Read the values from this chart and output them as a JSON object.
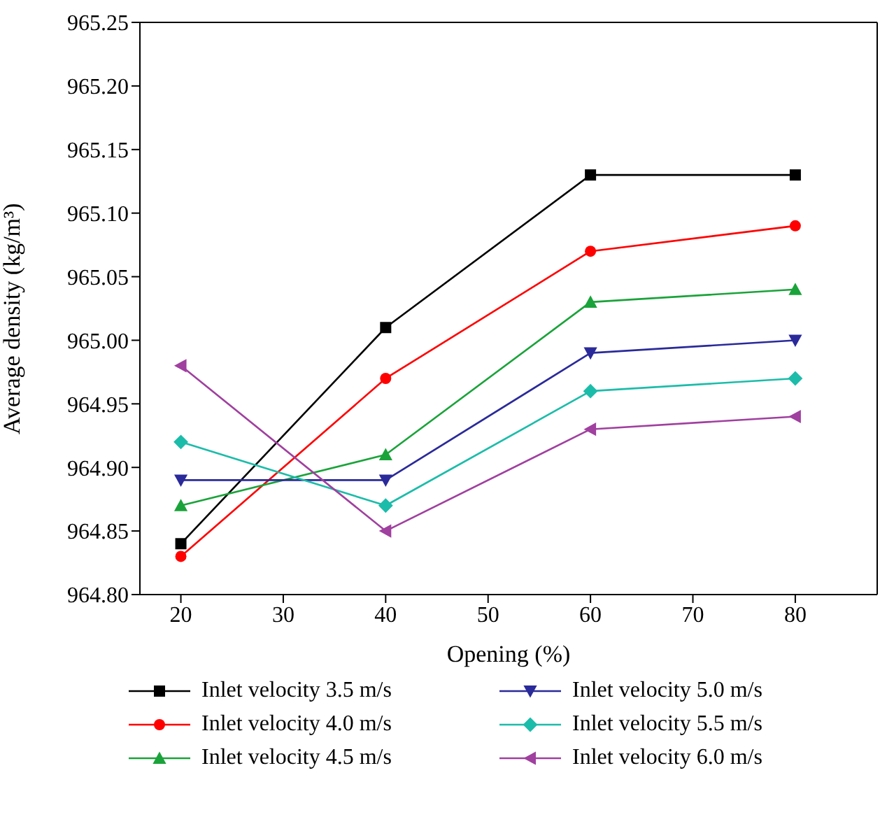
{
  "chart_data": {
    "type": "line",
    "xlabel": "Opening (%)",
    "ylabel": "Average density (kg/m³)",
    "x": [
      20,
      40,
      60,
      80
    ],
    "xlim": [
      16,
      88
    ],
    "xticks": [
      20,
      30,
      40,
      50,
      60,
      70,
      80
    ],
    "ylim": [
      964.8,
      965.25
    ],
    "yticks": [
      {
        "value": 964.8,
        "label": "964.80"
      },
      964.85,
      {
        "value": 964.9,
        "label": "964.90"
      },
      964.95,
      {
        "value": 965.0,
        "label": "965.00"
      },
      965.05,
      {
        "value": 965.1,
        "label": "965.10"
      },
      965.15,
      {
        "value": 965.2,
        "label": "965.20"
      },
      965.25
    ],
    "grid": false,
    "legend": "bottom",
    "line_style": "solid",
    "series": [
      {
        "name": "Inlet velocity 3.5 m/s",
        "color": "#000000",
        "marker": "square",
        "values": [
          964.84,
          965.01,
          965.13,
          965.13
        ]
      },
      {
        "name": "Inlet velocity 4.0 m/s",
        "color": "#ff0000",
        "marker": "circle",
        "values": [
          964.83,
          964.97,
          965.07,
          965.09
        ]
      },
      {
        "name": "Inlet velocity 4.5 m/s",
        "color": "#1aa33a",
        "marker": "triangle",
        "values": [
          964.87,
          964.91,
          965.03,
          965.04
        ]
      },
      {
        "name": "Inlet velocity 5.0 m/s",
        "color": "#2a2a9a",
        "marker": "triangle-down",
        "values": [
          964.89,
          964.89,
          964.99,
          965.0
        ]
      },
      {
        "name": "Inlet velocity 5.5 m/s",
        "color": "#1cbcaa",
        "marker": "diamond",
        "values": [
          964.92,
          964.87,
          964.96,
          964.97
        ]
      },
      {
        "name": "Inlet velocity 6.0 m/s",
        "color": "#a0409f",
        "marker": "triangle-left",
        "values": [
          964.98,
          964.85,
          964.93,
          964.94
        ]
      }
    ]
  }
}
